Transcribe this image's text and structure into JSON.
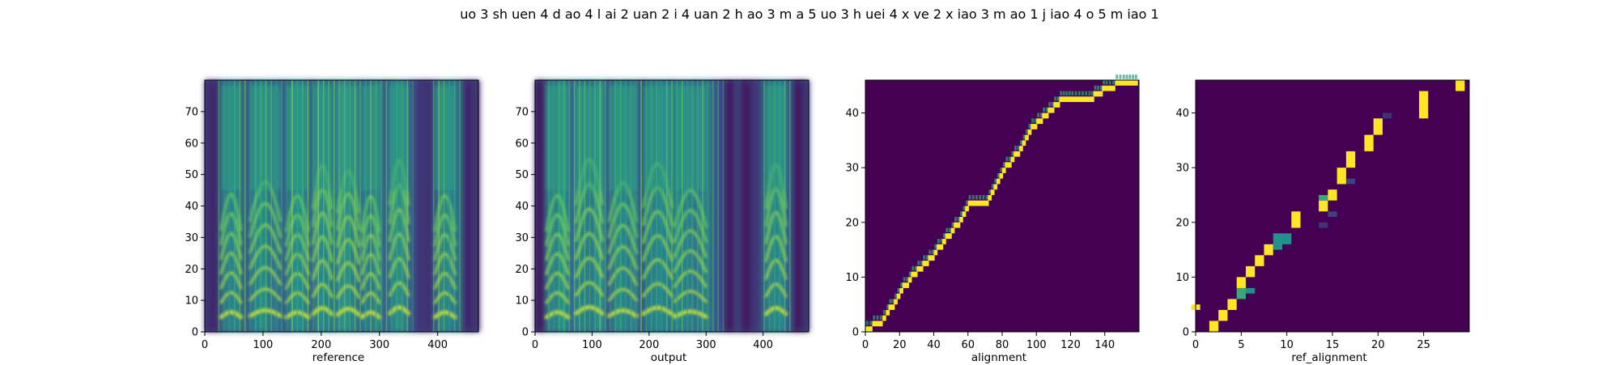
{
  "figure": {
    "suptitle": "uo 3 sh uen 4 d ao 4 l ai 2  uan 2  i 4  uan 2 h ao 3 m a 5  uo 3 h uei 4 x ve 2 x iao 3 m ao 1 j iao 4  o 5 m iao 1"
  },
  "colors": {
    "viridis_dark": "#440154",
    "viridis_blue": "#3b528b",
    "viridis_teal": "#21918c",
    "viridis_green": "#5ec962",
    "viridis_yellow": "#fde725"
  },
  "chart_data": [
    {
      "type": "heatmap",
      "xlabel": "reference",
      "xlim": [
        0,
        470
      ],
      "ylim": [
        0,
        80
      ],
      "xticks": [
        0,
        100,
        200,
        300,
        400
      ],
      "yticks": [
        0,
        10,
        20,
        30,
        40,
        50,
        60,
        70
      ],
      "colormap": "viridis",
      "content": "mel-spectrogram",
      "voiced_frames": [
        [
          28,
          62
        ],
        [
          78,
          130
        ],
        [
          140,
          178
        ],
        [
          186,
          218
        ],
        [
          228,
          265
        ],
        [
          270,
          300
        ],
        [
          318,
          350
        ],
        [
          395,
          430
        ]
      ],
      "silent_frames": [
        [
          0,
          22
        ],
        [
          358,
          388
        ],
        [
          440,
          470
        ]
      ]
    },
    {
      "type": "heatmap",
      "xlabel": "output",
      "xlim": [
        0,
        480
      ],
      "ylim": [
        0,
        80
      ],
      "xticks": [
        0,
        100,
        200,
        300,
        400
      ],
      "yticks": [
        0,
        10,
        20,
        30,
        40,
        50,
        60,
        70
      ],
      "colormap": "viridis",
      "content": "mel-spectrogram",
      "voiced_frames": [
        [
          20,
          58
        ],
        [
          72,
          118
        ],
        [
          130,
          178
        ],
        [
          190,
          240
        ],
        [
          245,
          300
        ],
        [
          405,
          440
        ]
      ],
      "silent_frames": [
        [
          0,
          15
        ],
        [
          330,
          395
        ],
        [
          450,
          480
        ]
      ]
    },
    {
      "type": "heatmap",
      "xlabel": "alignment",
      "xlim": [
        0,
        160
      ],
      "ylim": [
        0,
        46
      ],
      "xticks": [
        0,
        20,
        40,
        60,
        80,
        100,
        120,
        140
      ],
      "yticks": [
        0,
        10,
        20,
        30,
        40
      ],
      "colormap": "viridis",
      "path_x": [
        0,
        8,
        12,
        15,
        20,
        25,
        30,
        35,
        40,
        45,
        50,
        55,
        60,
        70,
        75,
        80,
        85,
        90,
        95,
        100,
        105,
        110,
        115,
        120,
        130,
        135,
        140,
        150,
        159
      ],
      "path_y": [
        0,
        1,
        3,
        4,
        7,
        9,
        11,
        12,
        14,
        16,
        18,
        20,
        23,
        23,
        26,
        29,
        31,
        33,
        36,
        38,
        39,
        41,
        42,
        42,
        42,
        43,
        44,
        45,
        45
      ]
    },
    {
      "type": "heatmap",
      "xlabel": "ref_alignment",
      "xlim": [
        0,
        30
      ],
      "ylim": [
        0,
        46
      ],
      "xticks": [
        0,
        5,
        10,
        15,
        20,
        25
      ],
      "yticks": [
        0,
        10,
        20,
        30,
        40
      ],
      "colormap": "viridis",
      "cells": [
        {
          "x": 0,
          "y0": 4,
          "y1": 5,
          "v": 1
        },
        {
          "x": 2,
          "y0": 0,
          "y1": 2,
          "v": 1
        },
        {
          "x": 3,
          "y0": 2,
          "y1": 4,
          "v": 1
        },
        {
          "x": 4,
          "y0": 4,
          "y1": 6,
          "v": 1
        },
        {
          "x": 5,
          "y0": 6,
          "y1": 8,
          "v": 0.6
        },
        {
          "x": 5,
          "y0": 8,
          "y1": 10,
          "v": 1
        },
        {
          "x": 6,
          "y0": 7,
          "y1": 8,
          "v": 0.5
        },
        {
          "x": 6,
          "y0": 10,
          "y1": 12,
          "v": 1
        },
        {
          "x": 7,
          "y0": 12,
          "y1": 14,
          "v": 1
        },
        {
          "x": 8,
          "y0": 14,
          "y1": 16,
          "v": 1
        },
        {
          "x": 9,
          "y0": 15,
          "y1": 18,
          "v": 0.5
        },
        {
          "x": 10,
          "y0": 16,
          "y1": 18,
          "v": 0.5
        },
        {
          "x": 11,
          "y0": 19,
          "y1": 22,
          "v": 1
        },
        {
          "x": 14,
          "y0": 19,
          "y1": 20,
          "v": 0.15
        },
        {
          "x": 14,
          "y0": 22,
          "y1": 24,
          "v": 1
        },
        {
          "x": 14,
          "y0": 24,
          "y1": 25,
          "v": 0.6
        },
        {
          "x": 15,
          "y0": 21,
          "y1": 22,
          "v": 0.2
        },
        {
          "x": 15,
          "y0": 24,
          "y1": 26,
          "v": 1
        },
        {
          "x": 16,
          "y0": 27,
          "y1": 30,
          "v": 1
        },
        {
          "x": 17,
          "y0": 27,
          "y1": 28,
          "v": 0.2
        },
        {
          "x": 17,
          "y0": 30,
          "y1": 33,
          "v": 1
        },
        {
          "x": 19,
          "y0": 33,
          "y1": 36,
          "v": 1
        },
        {
          "x": 20,
          "y0": 36,
          "y1": 39,
          "v": 1
        },
        {
          "x": 21,
          "y0": 39,
          "y1": 40,
          "v": 0.15
        },
        {
          "x": 25,
          "y0": 39,
          "y1": 44,
          "v": 1
        },
        {
          "x": 29,
          "y0": 44,
          "y1": 46,
          "v": 1
        }
      ]
    }
  ]
}
